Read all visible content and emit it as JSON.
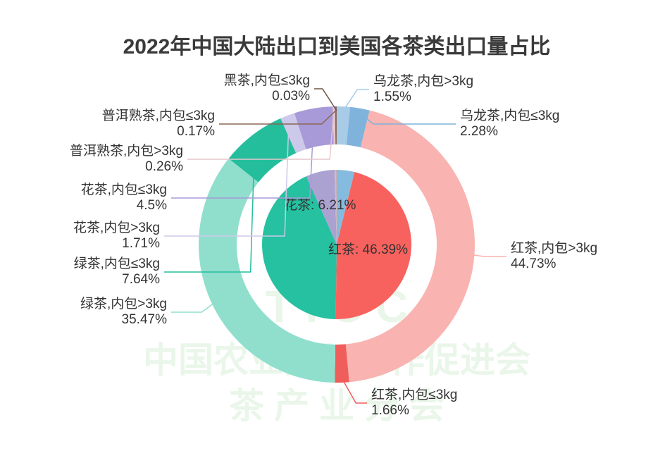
{
  "chart_data": {
    "type": "nested-pie",
    "title": "2022年中国大陆出口到美国各茶类出口量占比",
    "watermark": [
      "T I C C",
      "中国农业国际合作促进会",
      "茶  产  业  分  会"
    ],
    "inner": {
      "values": [
        3.83,
        46.39,
        43.11,
        6.21,
        0.43,
        0.03
      ],
      "value_labels": [
        null,
        "红茶: 46.39%",
        null,
        "花茶: 6.21%",
        null,
        null
      ],
      "colors": [
        "#86bbe0",
        "#f8625e",
        "#25c1a0",
        "#aba2d2",
        "#d9b7be",
        "#7a5a4c"
      ]
    },
    "outer": {
      "categories": [
        "乌龙茶,内包>3kg",
        "乌龙茶,内包≤3kg",
        "红茶,内包>3kg",
        "红茶,内包≤3kg",
        "绿茶,内包>3kg",
        "绿茶,内包≤3kg",
        "花茶,内包>3kg",
        "花茶,内包≤3kg",
        "普洱熟茶,内包>3kg",
        "普洱熟茶,内包≤3kg",
        "黑茶,内包≤3kg"
      ],
      "values": [
        1.55,
        2.28,
        44.73,
        1.66,
        35.47,
        7.64,
        1.71,
        4.5,
        0.26,
        0.17,
        0.03
      ],
      "value_labels": [
        "1.55%",
        "2.28%",
        "44.73%",
        "1.66%",
        "35.47%",
        "7.64%",
        "1.71%",
        "4.5%",
        "0.26%",
        "0.17%",
        "0.03%"
      ],
      "colors": [
        "#a8cbe8",
        "#7fb3dc",
        "#f9b3b0",
        "#ef5e5b",
        "#90dfcd",
        "#24be9c",
        "#cdc9ea",
        "#a89ad8",
        "#e6c6cc",
        "#8a6656",
        "#6e5346"
      ]
    }
  }
}
